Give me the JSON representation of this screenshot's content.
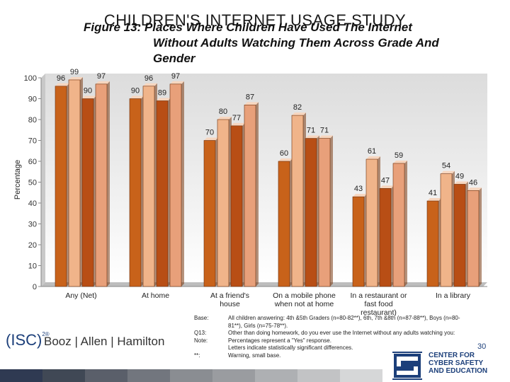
{
  "slide": {
    "title": "CHILDREN'S INTERNET USAGE STUDY",
    "caption_line1": "Figure 13: Places Where Children Have Used The Internet",
    "caption_line2": "Without Adults Watching Them Across Grade And",
    "caption_line3": "Gender",
    "page_number": "30"
  },
  "chart_data": {
    "type": "bar",
    "ylabel": "Percentage",
    "ylim": [
      0,
      100
    ],
    "yticks": [
      0,
      10,
      20,
      30,
      40,
      50,
      60,
      70,
      80,
      90,
      100
    ],
    "grid": false,
    "categories": [
      "Any (Net)",
      "At home",
      "At a friend's house",
      "On a mobile phone when not at home",
      "In a restaurant or fast food restaurant)",
      "In a library"
    ],
    "category_lines": [
      [
        "Any (Net)"
      ],
      [
        "At home"
      ],
      [
        "At a friend's",
        "house"
      ],
      [
        "On a mobile phone",
        "when not at home"
      ],
      [
        "In a restaurant or",
        "fast food",
        "restaurant)"
      ],
      [
        "In a library"
      ]
    ],
    "series": [
      {
        "color": "#c8621a",
        "values": [
          96,
          90,
          70,
          60,
          43,
          41
        ]
      },
      {
        "color": "#f0b48a",
        "values": [
          99,
          96,
          80,
          82,
          61,
          54
        ]
      },
      {
        "color": "#b84e15",
        "values": [
          90,
          89,
          77,
          71,
          47,
          49
        ]
      },
      {
        "color": "#e8a07a",
        "values": [
          97,
          97,
          87,
          71,
          59,
          46
        ]
      }
    ]
  },
  "notes": {
    "base_label": "Base:",
    "base_text": "All children answering: 4th &5th Graders (n=80-82**), 6th, 7th &8th (n=87-88**), Boys (n=80-",
    "base_text2": "81**), Girls (n=75-78**).",
    "q_label": "Q13:",
    "q_text": "Other than doing homework, do you ever use the Internet without any adults watching you:",
    "note_label": "Note:",
    "note_text1": "Percentages represent a \"Yes\" response.",
    "note_text2": "Letters indicate statistically significant differences.",
    "warn_label": "**:",
    "warn_text": "Warning, small base."
  },
  "logos": {
    "isc": "(ISC)",
    "isc_sup": "2®",
    "bah": "Booz | Allen | Hamilton",
    "cse_line1": "CENTER FOR",
    "cse_line2": "CYBER SAFETY",
    "cse_line3": "AND EDUCATION"
  }
}
